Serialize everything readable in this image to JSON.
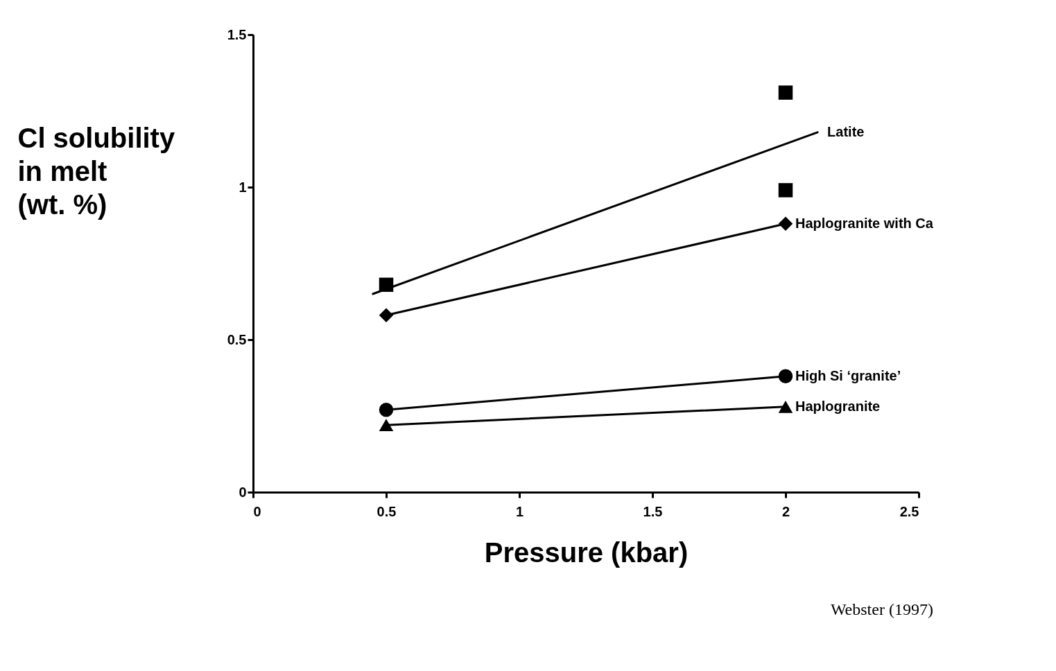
{
  "chart_data": {
    "type": "line",
    "xlabel": "Pressure (kbar)",
    "ylabel": "Cl solubility in melt (wt. %)",
    "xlim": [
      0,
      2.5
    ],
    "ylim": [
      0,
      1.5
    ],
    "xticks": [
      0,
      0.5,
      1,
      1.5,
      2,
      2.5
    ],
    "yticks": [
      0,
      0.5,
      1,
      1.5
    ],
    "line_style": "solid",
    "annotations": [
      "Webster (1997)"
    ],
    "series": [
      {
        "name": "Latite",
        "color": "#000000",
        "marker": "none",
        "x": [
          0.45,
          2.12
        ],
        "values": [
          0.65,
          1.18
        ]
      },
      {
        "type": "scatter",
        "color": "#000000",
        "marker": "square",
        "x": [
          0.5,
          2,
          2
        ],
        "values": [
          0.68,
          1.31,
          0.99
        ]
      },
      {
        "name": "Haplogranite with Ca",
        "color": "#000000",
        "marker": "diamond",
        "x": [
          0.5,
          2
        ],
        "values": [
          0.58,
          0.88
        ]
      },
      {
        "name": "High Si ‘granite’",
        "color": "#000000",
        "marker": "circle",
        "x": [
          0.5,
          2
        ],
        "values": [
          0.27,
          0.38
        ]
      },
      {
        "name": "Haplogranite",
        "color": "#000000",
        "marker": "triangle",
        "x": [
          0.5,
          2
        ],
        "values": [
          0.22,
          0.28
        ]
      }
    ]
  }
}
